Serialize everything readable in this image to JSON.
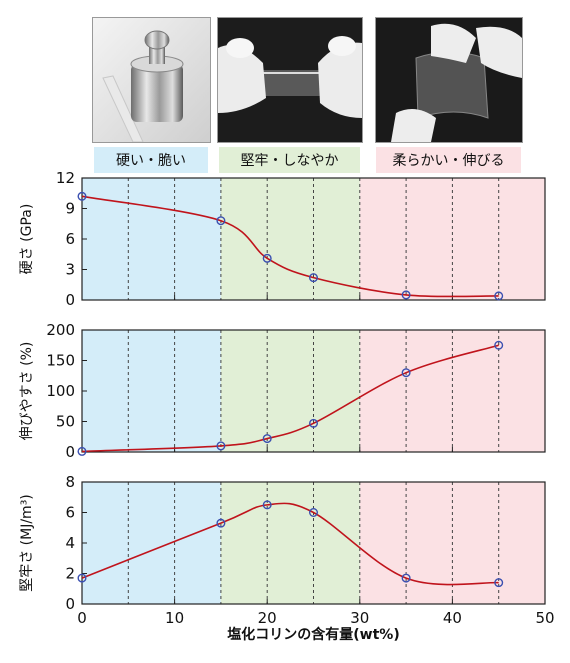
{
  "colors": {
    "zone_hard": "#d4edf9",
    "zone_tough": "#e1efd6",
    "zone_soft": "#fbe1e4",
    "curve": "#c0141c",
    "marker": "#3a4fb0",
    "grid": "#444444"
  },
  "photos": [
    {
      "name": "photo-metal-weight",
      "icon": "metal-weight-photo"
    },
    {
      "name": "photo-film-stretched",
      "icon": "stretched-film-photo"
    },
    {
      "name": "photo-film-bent",
      "icon": "bent-film-photo"
    }
  ],
  "chart_data": [
    {
      "type": "line",
      "zones": [
        {
          "label": "硬い・脆い",
          "from": 0,
          "to": 15,
          "color": "#d4edf9"
        },
        {
          "label": "堅牢・しなやか",
          "from": 15,
          "to": 30,
          "color": "#e1efd6"
        },
        {
          "label": "柔らかい・伸びる",
          "from": 30,
          "to": 50,
          "color": "#fbe1e4"
        }
      ],
      "xlabel": "",
      "ylabel": "硬さ (GPa)",
      "xlim": [
        0,
        50
      ],
      "ylim": [
        0,
        12
      ],
      "yticks": [
        "0",
        "3",
        "6",
        "9",
        "12"
      ],
      "xticks": [],
      "grid_x": [
        5,
        10,
        15,
        20,
        25,
        30,
        35,
        40,
        45
      ],
      "x": [
        0,
        15,
        20,
        25,
        35,
        45
      ],
      "y": [
        10.2,
        7.8,
        4.1,
        2.2,
        0.5,
        0.4
      ]
    },
    {
      "type": "line",
      "xlabel": "",
      "ylabel": "伸びやすさ (%)",
      "xlim": [
        0,
        50
      ],
      "ylim": [
        0,
        200
      ],
      "yticks": [
        "0",
        "50",
        "100",
        "150",
        "200"
      ],
      "xticks": [],
      "grid_x": [
        5,
        10,
        15,
        20,
        25,
        30,
        35,
        40,
        45
      ],
      "x": [
        0,
        15,
        20,
        25,
        35,
        45
      ],
      "y": [
        1,
        10,
        22,
        47,
        130,
        175
      ]
    },
    {
      "type": "line",
      "xlabel": "塩化コリンの含有量(wt%)",
      "ylabel": "堅牢さ (MJ/m³)",
      "xlim": [
        0,
        50
      ],
      "ylim": [
        0,
        8
      ],
      "yticks": [
        "0",
        "2",
        "4",
        "6",
        "8"
      ],
      "xticks": [
        "0",
        "10",
        "20",
        "30",
        "40",
        "50"
      ],
      "grid_x": [
        5,
        10,
        15,
        20,
        25,
        30,
        35,
        40,
        45
      ],
      "x": [
        0,
        15,
        20,
        25,
        35,
        45
      ],
      "y": [
        1.7,
        5.3,
        6.5,
        6.0,
        1.7,
        1.4
      ]
    }
  ]
}
